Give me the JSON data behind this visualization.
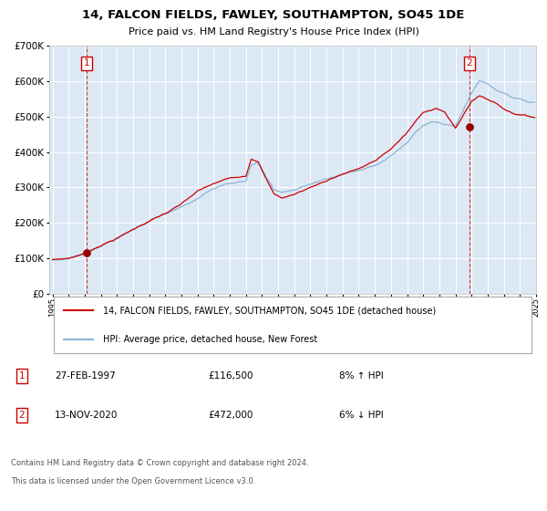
{
  "title": "14, FALCON FIELDS, FAWLEY, SOUTHAMPTON, SO45 1DE",
  "subtitle": "Price paid vs. HM Land Registry's House Price Index (HPI)",
  "legend_line1": "14, FALCON FIELDS, FAWLEY, SOUTHAMPTON, SO45 1DE (detached house)",
  "legend_line2": "HPI: Average price, detached house, New Forest",
  "marker1_date": "27-FEB-1997",
  "marker1_price": 116500,
  "marker1_hpi_pct": "8% ↑ HPI",
  "marker2_date": "13-NOV-2020",
  "marker2_price": 472000,
  "marker2_hpi_pct": "6% ↓ HPI",
  "footer1": "Contains HM Land Registry data © Crown copyright and database right 2024.",
  "footer2": "This data is licensed under the Open Government Licence v3.0.",
  "red_color": "#cc0000",
  "blue_color": "#8ab4d4",
  "plot_bg_color": "#dce9f5",
  "grid_color": "#ffffff",
  "year_start": 1995,
  "year_end": 2025,
  "ylim_min": 0,
  "ylim_max": 700000,
  "sale1_year": 1997.12,
  "sale1_price": 116500,
  "sale2_year": 2020.87,
  "sale2_price": 472000
}
